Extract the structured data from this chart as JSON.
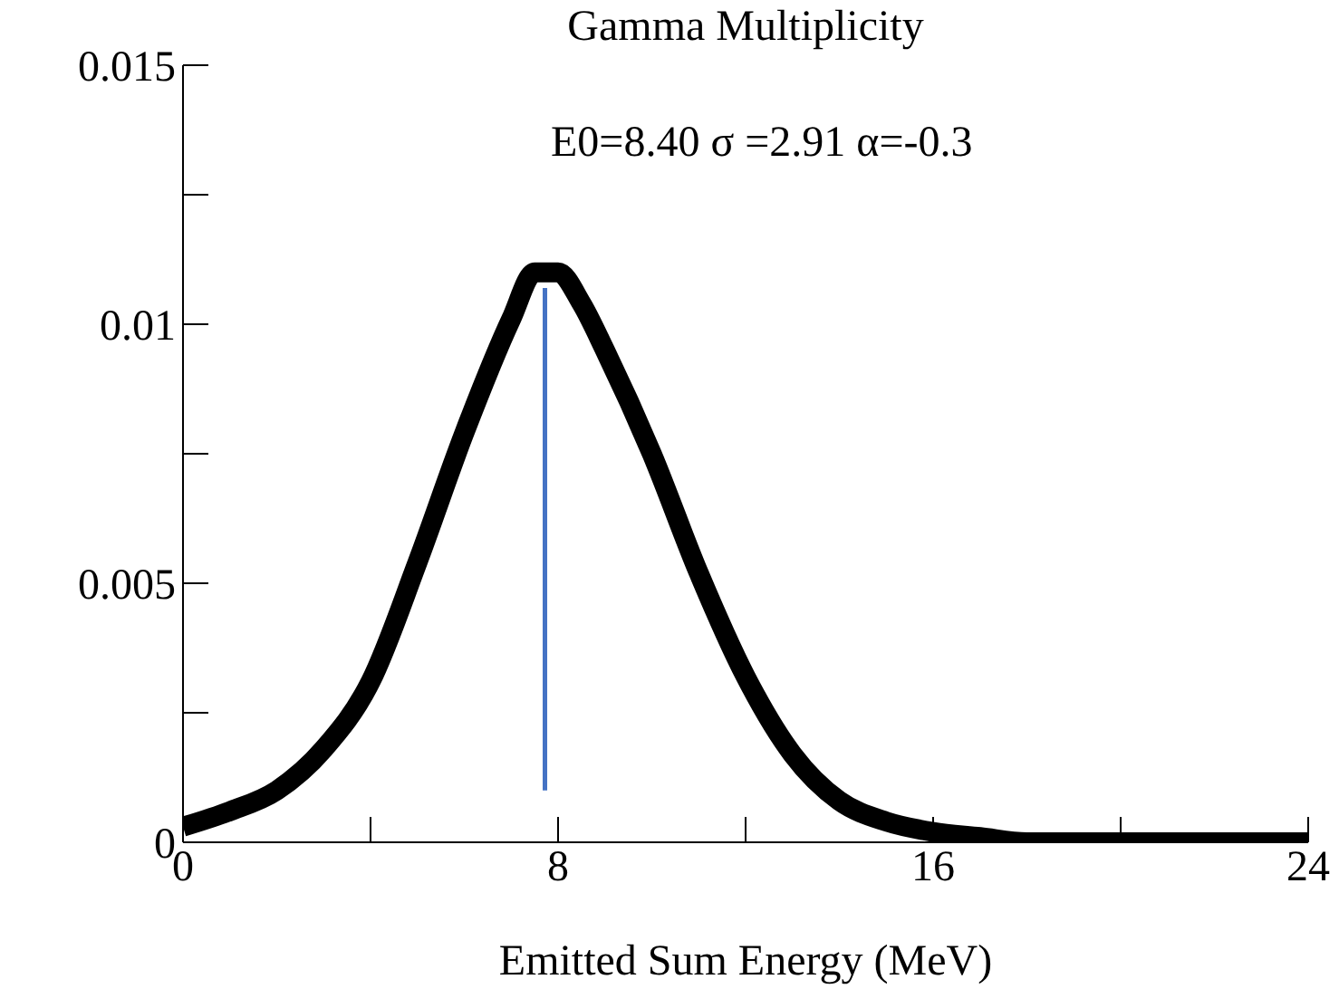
{
  "chart_data": {
    "type": "line",
    "title": "Gamma Multiplicity",
    "xlabel": "Emitted Sum Energy (MeV)",
    "annotations": [
      "E0=8.40 σ =2.91 α=-0.3"
    ],
    "series": [
      {
        "color": "#000000",
        "x": [
          0,
          1,
          2,
          3,
          4,
          5,
          6,
          7,
          7.5,
          8,
          8.5,
          9,
          10,
          11,
          12,
          13,
          14,
          15,
          16,
          17,
          18,
          20,
          22,
          24
        ],
        "values": [
          0.0003,
          0.0006,
          0.001,
          0.0018,
          0.0031,
          0.0054,
          0.0079,
          0.0101,
          0.011,
          0.011,
          0.0104,
          0.0095,
          0.0075,
          0.0052,
          0.0032,
          0.0017,
          0.0008,
          0.0004,
          0.0002,
          0.0001,
          0,
          0,
          0,
          0
        ]
      },
      {
        "color": "#4472c4",
        "x": [
          7.72,
          7.72
        ],
        "values": [
          0.001,
          0.0107
        ]
      }
    ],
    "xlim": [
      0,
      24
    ],
    "xticks": [
      0,
      {
        "value": 4,
        "label": null
      },
      8,
      {
        "value": 12,
        "label": null
      },
      16,
      {
        "value": 20,
        "label": null
      },
      24
    ],
    "ylim": [
      0,
      0.015
    ],
    "yticks": [
      0,
      {
        "value": 0.0025,
        "label": null
      },
      0.005,
      {
        "value": 0.0075,
        "label": null
      },
      0.01,
      {
        "value": 0.0125,
        "label": null
      },
      0.015
    ],
    "grid": false,
    "marker": "none",
    "line_style": "solid"
  }
}
